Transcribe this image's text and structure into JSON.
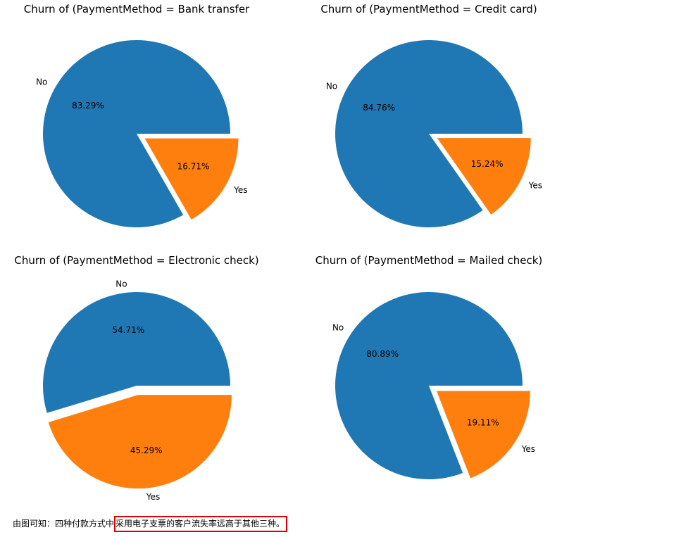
{
  "chart_data": [
    {
      "type": "pie",
      "title": "Churn of (PaymentMethod = Bank transfer",
      "slices": [
        {
          "label": "No",
          "value": 83.29,
          "pct_label": "83.29%",
          "color": "#1f77b4",
          "explode": 0
        },
        {
          "label": "Yes",
          "value": 16.71,
          "pct_label": "16.71%",
          "color": "#ff7f0e",
          "explode": 0.1
        }
      ]
    },
    {
      "type": "pie",
      "title": "Churn of (PaymentMethod = Credit card)",
      "slices": [
        {
          "label": "No",
          "value": 84.76,
          "pct_label": "84.76%",
          "color": "#1f77b4",
          "explode": 0
        },
        {
          "label": "Yes",
          "value": 15.24,
          "pct_label": "15.24%",
          "color": "#ff7f0e",
          "explode": 0.1
        }
      ]
    },
    {
      "type": "pie",
      "title": "Churn of (PaymentMethod = Electronic check)",
      "slices": [
        {
          "label": "No",
          "value": 54.71,
          "pct_label": "54.71%",
          "color": "#1f77b4",
          "explode": 0
        },
        {
          "label": "Yes",
          "value": 45.29,
          "pct_label": "45.29%",
          "color": "#ff7f0e",
          "explode": 0.1
        }
      ]
    },
    {
      "type": "pie",
      "title": "Churn of (PaymentMethod = Mailed check)",
      "slices": [
        {
          "label": "No",
          "value": 80.89,
          "pct_label": "80.89%",
          "color": "#1f77b4",
          "explode": 0
        },
        {
          "label": "Yes",
          "value": 19.11,
          "pct_label": "19.11%",
          "color": "#ff7f0e",
          "explode": 0.1
        }
      ]
    }
  ],
  "caption": {
    "prefix": "由图可知：四种付款方式中",
    "highlight": "采用电子支票的客户流失率远高于其他三种。"
  }
}
